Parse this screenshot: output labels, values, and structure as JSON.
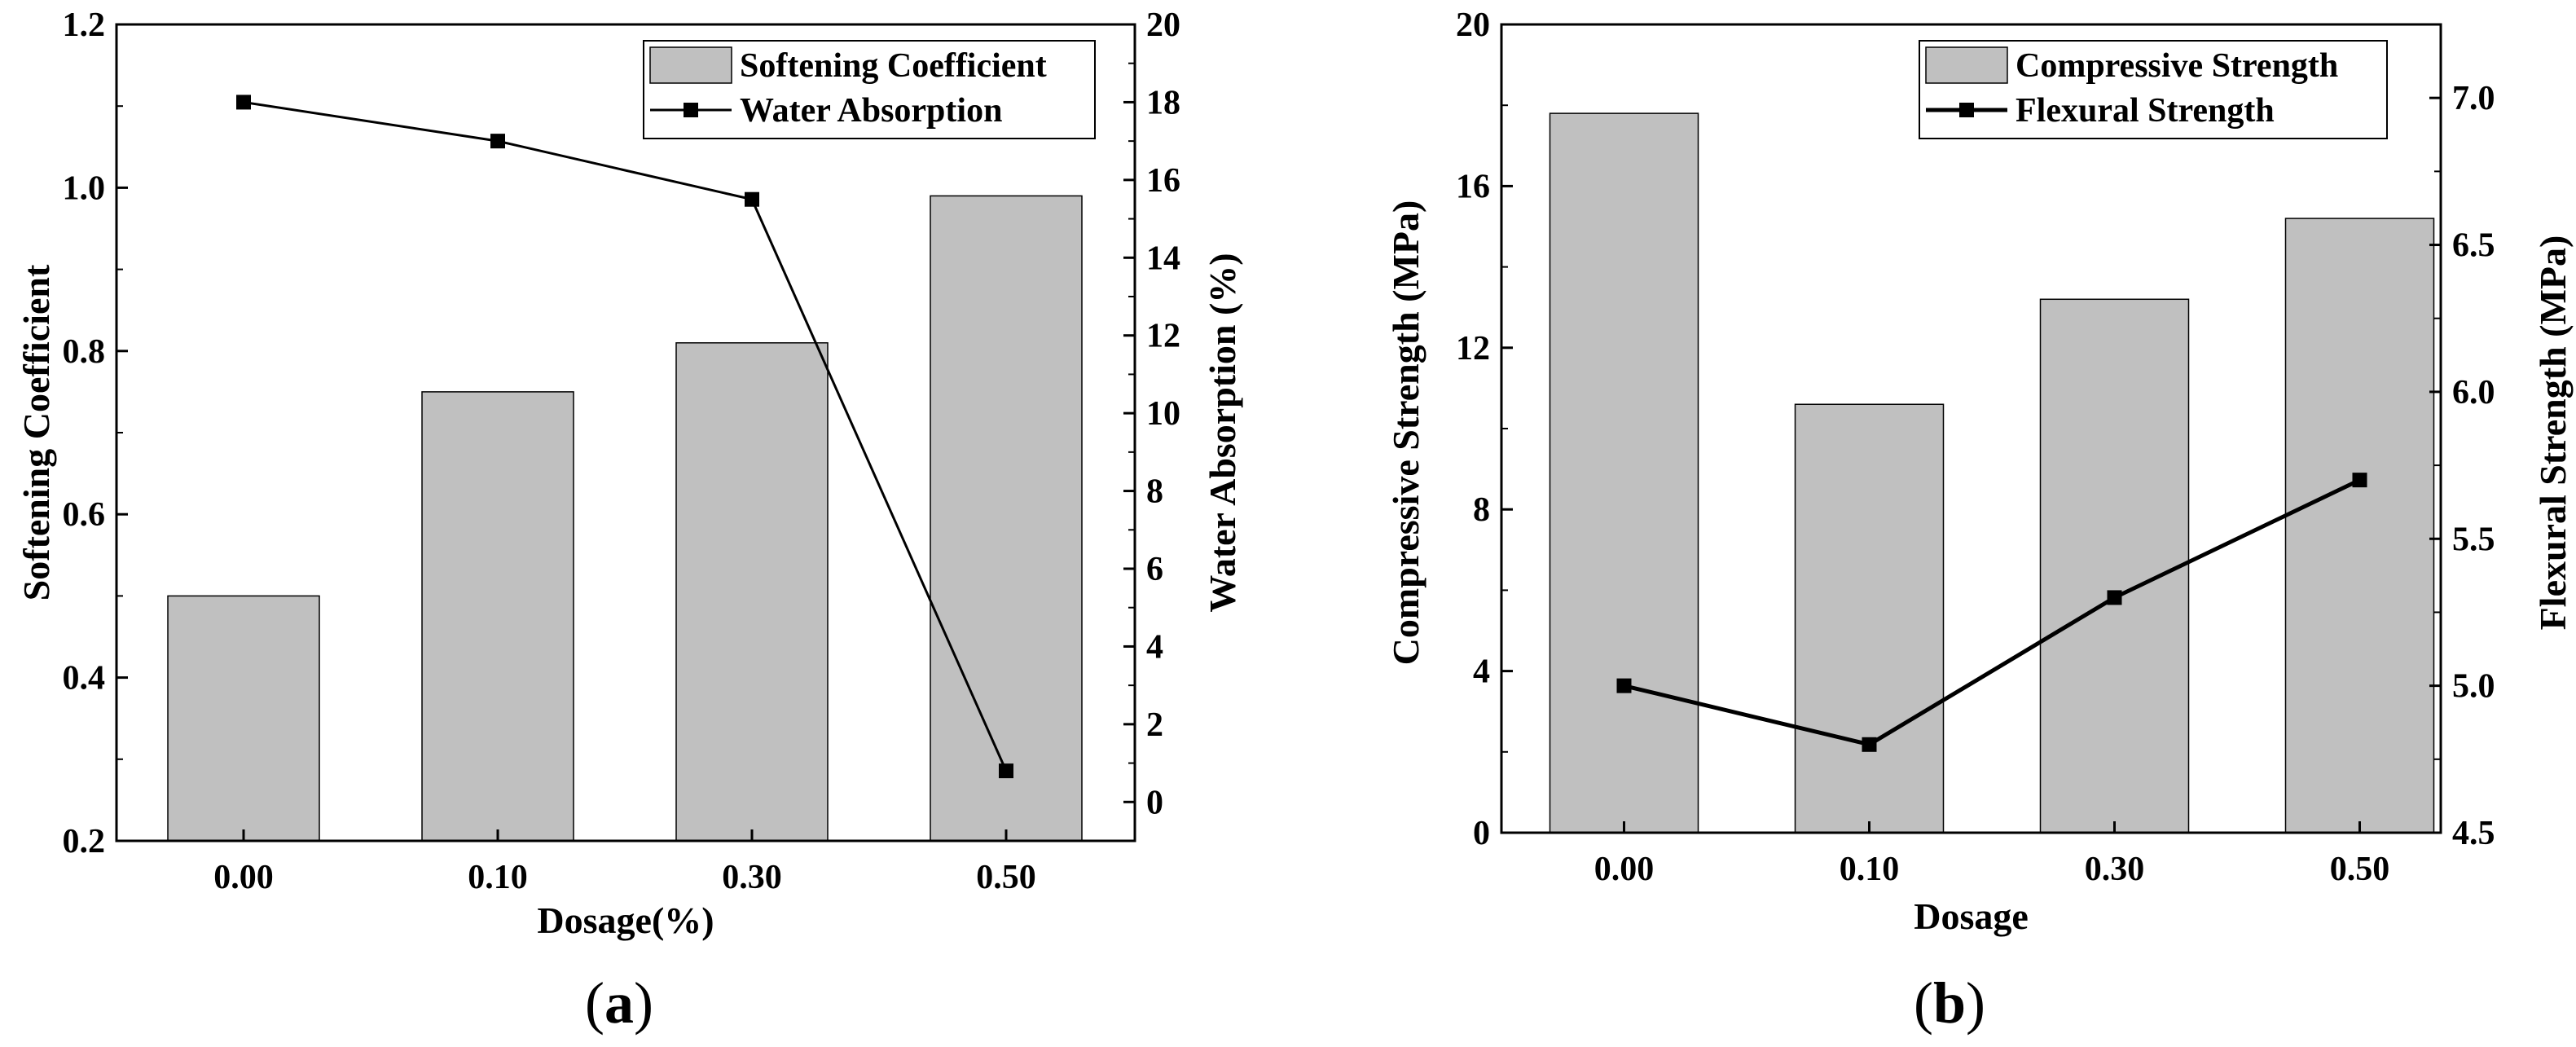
{
  "chart_data": [
    {
      "type": "bar+line",
      "caption": "(a)",
      "caption_letter": "a",
      "xlabel": "Dosage(%)",
      "categories": [
        "0.00",
        "0.10",
        "0.30",
        "0.50"
      ],
      "series": [
        {
          "name": "Softening Coefficient",
          "kind": "bar",
          "axis": "left",
          "values": [
            0.5,
            0.75,
            0.81,
            0.99
          ]
        },
        {
          "name": "Water Absorption",
          "kind": "line",
          "axis": "right",
          "values": [
            18.0,
            17.0,
            15.5,
            0.8
          ]
        }
      ],
      "y_left": {
        "label": "Softening Coefficient",
        "lim": [
          0.2,
          1.2
        ],
        "ticks": [
          "0.2",
          "0.4",
          "0.6",
          "0.8",
          "1.0",
          "1.2"
        ],
        "tick_values": [
          0.2,
          0.4,
          0.6,
          0.8,
          1.0,
          1.2
        ]
      },
      "y_right": {
        "label": "Water Absorption (%)",
        "lim": [
          -1,
          20
        ],
        "ticks": [
          "0",
          "2",
          "4",
          "6",
          "8",
          "10",
          "12",
          "14",
          "16",
          "18",
          "20"
        ],
        "tick_values": [
          0,
          2,
          4,
          6,
          8,
          10,
          12,
          14,
          16,
          18,
          20
        ]
      },
      "legend": "top-right",
      "bar_color": "#c0c0c0"
    },
    {
      "type": "bar+line",
      "caption": "(b)",
      "caption_letter": "b",
      "xlabel": "Dosage",
      "categories": [
        "0.00",
        "0.10",
        "0.30",
        "0.50"
      ],
      "series": [
        {
          "name": "Compressive Strength",
          "kind": "bar",
          "axis": "left",
          "values": [
            17.8,
            10.6,
            13.2,
            15.2
          ]
        },
        {
          "name": "Flexural Strength",
          "kind": "line",
          "axis": "right",
          "values": [
            5.0,
            4.8,
            5.3,
            5.7
          ]
        }
      ],
      "y_left": {
        "label": "Compressive Strength (MPa)",
        "lim": [
          0,
          20
        ],
        "ticks": [
          "0",
          "4",
          "8",
          "12",
          "16",
          "20"
        ],
        "tick_values": [
          0,
          4,
          8,
          12,
          16,
          20
        ]
      },
      "y_right": {
        "label": "Flexural Strength (MPa)",
        "lim": [
          4.5,
          7.25
        ],
        "ticks": [
          "4.5",
          "5.0",
          "5.5",
          "6.0",
          "6.5",
          "7.0"
        ],
        "tick_values": [
          4.5,
          5.0,
          5.5,
          6.0,
          6.5,
          7.0
        ]
      },
      "legend": "top-right",
      "bar_color": "#c0c0c0"
    }
  ]
}
